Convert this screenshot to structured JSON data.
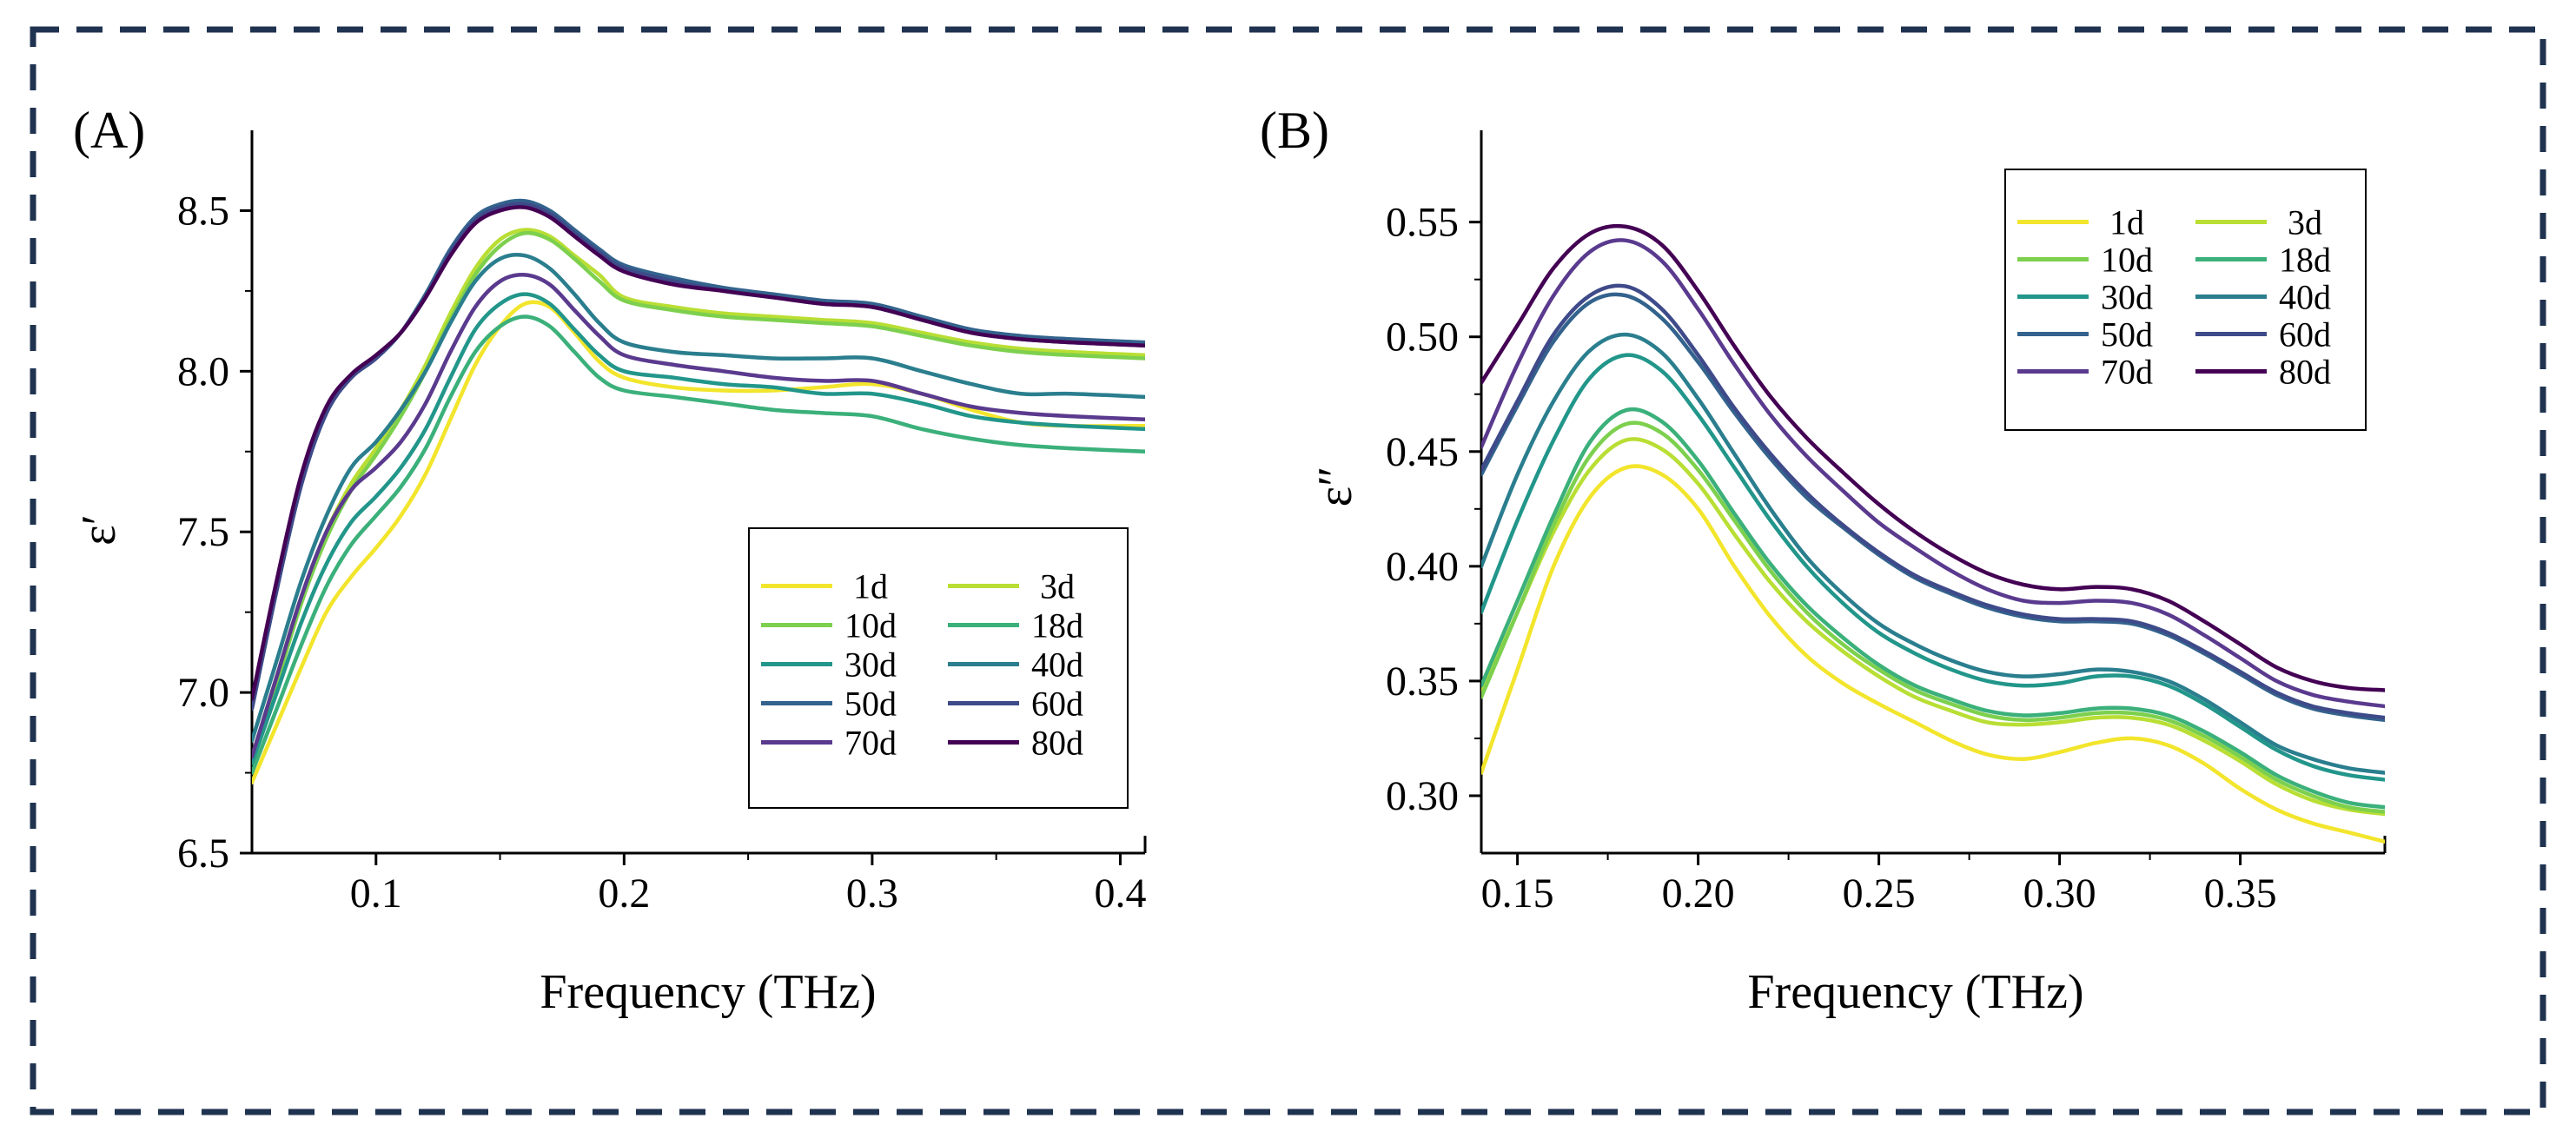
{
  "frame": {
    "border_color": "#1f3350",
    "border_style": "dashed"
  },
  "chart_data": [
    {
      "type": "line",
      "panel_label": "(A)",
      "title": "",
      "xlabel": "Frequency (THz)",
      "ylabel": "ε′",
      "xlim": [
        0.05,
        0.41
      ],
      "ylim": [
        6.5,
        8.75
      ],
      "x_ticks": [
        0.1,
        0.2,
        0.3,
        0.4
      ],
      "x_tick_labels": [
        "0.1",
        "0.2",
        "0.3",
        "0.4"
      ],
      "y_ticks": [
        6.5,
        7.0,
        7.5,
        8.0,
        8.5
      ],
      "y_tick_labels": [
        "6.5",
        "7.0",
        "7.5",
        "8.0",
        "8.5"
      ],
      "grid": false,
      "legend": {
        "position": "bottom-right",
        "columns": 2
      },
      "x": [
        0.05,
        0.06,
        0.07,
        0.08,
        0.09,
        0.1,
        0.11,
        0.12,
        0.13,
        0.14,
        0.15,
        0.16,
        0.17,
        0.18,
        0.19,
        0.2,
        0.22,
        0.24,
        0.26,
        0.28,
        0.3,
        0.32,
        0.34,
        0.36,
        0.38,
        0.41
      ],
      "series": [
        {
          "name": "1d",
          "color": "#f2e52c",
          "values": [
            6.72,
            6.9,
            7.08,
            7.25,
            7.36,
            7.45,
            7.55,
            7.68,
            7.85,
            8.02,
            8.14,
            8.21,
            8.2,
            8.12,
            8.03,
            7.98,
            7.95,
            7.94,
            7.94,
            7.95,
            7.96,
            7.93,
            7.88,
            7.84,
            7.83,
            7.83
          ]
        },
        {
          "name": "3d",
          "color": "#b9de34",
          "values": [
            6.8,
            7.05,
            7.3,
            7.5,
            7.65,
            7.76,
            7.88,
            8.02,
            8.18,
            8.32,
            8.41,
            8.44,
            8.42,
            8.36,
            8.3,
            8.23,
            8.2,
            8.18,
            8.17,
            8.16,
            8.15,
            8.12,
            8.09,
            8.07,
            8.06,
            8.05
          ]
        },
        {
          "name": "10d",
          "color": "#7dd04e",
          "values": [
            6.78,
            7.03,
            7.28,
            7.48,
            7.63,
            7.74,
            7.86,
            8.0,
            8.16,
            8.3,
            8.39,
            8.43,
            8.41,
            8.35,
            8.28,
            8.22,
            8.19,
            8.17,
            8.16,
            8.15,
            8.14,
            8.11,
            8.08,
            8.06,
            8.05,
            8.04
          ]
        },
        {
          "name": "18d",
          "color": "#3bb07a",
          "values": [
            6.75,
            6.95,
            7.15,
            7.33,
            7.46,
            7.55,
            7.64,
            7.76,
            7.92,
            8.06,
            8.14,
            8.17,
            8.14,
            8.06,
            7.98,
            7.94,
            7.92,
            7.9,
            7.88,
            7.87,
            7.86,
            7.82,
            7.79,
            7.77,
            7.76,
            7.75
          ]
        },
        {
          "name": "30d",
          "color": "#22968a",
          "values": [
            6.78,
            7.0,
            7.22,
            7.4,
            7.53,
            7.61,
            7.7,
            7.82,
            7.98,
            8.13,
            8.21,
            8.24,
            8.21,
            8.13,
            8.05,
            8.0,
            7.98,
            7.96,
            7.95,
            7.93,
            7.93,
            7.9,
            7.86,
            7.84,
            7.83,
            7.82
          ]
        },
        {
          "name": "40d",
          "color": "#2a7e8e",
          "values": [
            6.85,
            7.1,
            7.35,
            7.55,
            7.7,
            7.78,
            7.88,
            8.0,
            8.15,
            8.28,
            8.35,
            8.36,
            8.32,
            8.24,
            8.15,
            8.09,
            8.06,
            8.05,
            8.04,
            8.04,
            8.04,
            8.0,
            7.96,
            7.93,
            7.93,
            7.92
          ]
        },
        {
          "name": "50d",
          "color": "#33638d",
          "values": [
            6.95,
            7.32,
            7.65,
            7.87,
            7.98,
            8.04,
            8.12,
            8.24,
            8.38,
            8.48,
            8.52,
            8.53,
            8.5,
            8.44,
            8.38,
            8.33,
            8.29,
            8.26,
            8.24,
            8.22,
            8.21,
            8.17,
            8.13,
            8.11,
            8.1,
            8.09
          ]
        },
        {
          "name": "60d",
          "color": "#3e4a89",
          "values": [
            6.95,
            7.32,
            7.65,
            7.87,
            7.98,
            8.04,
            8.12,
            8.23,
            8.37,
            8.47,
            8.51,
            8.52,
            8.49,
            8.43,
            8.37,
            8.32,
            8.28,
            8.25,
            8.23,
            8.21,
            8.2,
            8.16,
            8.12,
            8.1,
            8.09,
            8.08
          ]
        },
        {
          "name": "70d",
          "color": "#5a3a8e",
          "values": [
            6.8,
            7.05,
            7.3,
            7.5,
            7.63,
            7.7,
            7.78,
            7.9,
            8.06,
            8.2,
            8.28,
            8.3,
            8.27,
            8.19,
            8.11,
            8.05,
            8.02,
            8.0,
            7.98,
            7.97,
            7.97,
            7.93,
            7.89,
            7.87,
            7.86,
            7.85
          ]
        },
        {
          "name": "80d",
          "color": "#440154",
          "values": [
            6.98,
            7.35,
            7.68,
            7.89,
            7.99,
            8.05,
            8.12,
            8.23,
            8.36,
            8.46,
            8.5,
            8.51,
            8.48,
            8.42,
            8.36,
            8.31,
            8.27,
            8.25,
            8.23,
            8.21,
            8.2,
            8.16,
            8.12,
            8.1,
            8.09,
            8.08
          ]
        }
      ]
    },
    {
      "type": "line",
      "panel_label": "(B)",
      "title": "",
      "xlabel": "Frequency (THz)",
      "ylabel": "ε″",
      "xlim": [
        0.14,
        0.39
      ],
      "ylim": [
        0.275,
        0.59
      ],
      "x_ticks": [
        0.15,
        0.2,
        0.25,
        0.3,
        0.35
      ],
      "x_tick_labels": [
        "0.15",
        "0.20",
        "0.25",
        "0.30",
        "0.35"
      ],
      "y_ticks": [
        0.3,
        0.35,
        0.4,
        0.45,
        0.5,
        0.55
      ],
      "y_tick_labels": [
        "0.30",
        "0.35",
        "0.40",
        "0.45",
        "0.50",
        "0.55"
      ],
      "grid": false,
      "legend": {
        "position": "top-right",
        "columns": 2
      },
      "x": [
        0.14,
        0.15,
        0.16,
        0.17,
        0.18,
        0.19,
        0.2,
        0.21,
        0.22,
        0.23,
        0.24,
        0.25,
        0.26,
        0.27,
        0.28,
        0.29,
        0.3,
        0.31,
        0.32,
        0.33,
        0.34,
        0.35,
        0.36,
        0.37,
        0.38,
        0.39
      ],
      "series": [
        {
          "name": "1d",
          "color": "#f2e52c",
          "values": [
            0.31,
            0.355,
            0.4,
            0.43,
            0.443,
            0.44,
            0.425,
            0.4,
            0.378,
            0.361,
            0.349,
            0.34,
            0.332,
            0.324,
            0.318,
            0.316,
            0.319,
            0.323,
            0.325,
            0.322,
            0.314,
            0.303,
            0.294,
            0.288,
            0.284,
            0.28
          ]
        },
        {
          "name": "3d",
          "color": "#b9de34",
          "values": [
            0.345,
            0.38,
            0.415,
            0.442,
            0.455,
            0.451,
            0.436,
            0.414,
            0.393,
            0.376,
            0.363,
            0.352,
            0.343,
            0.337,
            0.332,
            0.331,
            0.332,
            0.334,
            0.334,
            0.331,
            0.324,
            0.315,
            0.305,
            0.298,
            0.294,
            0.292
          ]
        },
        {
          "name": "10d",
          "color": "#7dd04e",
          "values": [
            0.343,
            0.38,
            0.418,
            0.448,
            0.462,
            0.458,
            0.442,
            0.42,
            0.398,
            0.38,
            0.366,
            0.355,
            0.346,
            0.34,
            0.335,
            0.333,
            0.334,
            0.336,
            0.336,
            0.333,
            0.326,
            0.317,
            0.307,
            0.3,
            0.295,
            0.293
          ]
        },
        {
          "name": "18d",
          "color": "#3bb07a",
          "values": [
            0.348,
            0.385,
            0.422,
            0.454,
            0.468,
            0.463,
            0.446,
            0.423,
            0.401,
            0.383,
            0.369,
            0.357,
            0.348,
            0.342,
            0.337,
            0.335,
            0.336,
            0.338,
            0.338,
            0.335,
            0.328,
            0.319,
            0.309,
            0.302,
            0.297,
            0.295
          ]
        },
        {
          "name": "30d",
          "color": "#22968a",
          "values": [
            0.38,
            0.42,
            0.455,
            0.482,
            0.492,
            0.485,
            0.466,
            0.443,
            0.42,
            0.4,
            0.384,
            0.371,
            0.362,
            0.355,
            0.35,
            0.348,
            0.349,
            0.352,
            0.352,
            0.348,
            0.34,
            0.33,
            0.32,
            0.313,
            0.309,
            0.307
          ]
        },
        {
          "name": "40d",
          "color": "#2a7e8e",
          "values": [
            0.4,
            0.44,
            0.472,
            0.494,
            0.501,
            0.493,
            0.473,
            0.449,
            0.425,
            0.404,
            0.388,
            0.375,
            0.366,
            0.359,
            0.354,
            0.352,
            0.353,
            0.355,
            0.354,
            0.35,
            0.342,
            0.332,
            0.322,
            0.316,
            0.312,
            0.31
          ]
        },
        {
          "name": "50d",
          "color": "#33638d",
          "values": [
            0.44,
            0.47,
            0.498,
            0.515,
            0.518,
            0.508,
            0.489,
            0.467,
            0.447,
            0.43,
            0.417,
            0.405,
            0.395,
            0.388,
            0.382,
            0.378,
            0.376,
            0.376,
            0.375,
            0.37,
            0.362,
            0.353,
            0.344,
            0.338,
            0.335,
            0.333
          ]
        },
        {
          "name": "60d",
          "color": "#3e4a89",
          "values": [
            0.442,
            0.472,
            0.501,
            0.518,
            0.522,
            0.512,
            0.492,
            0.469,
            0.449,
            0.432,
            0.418,
            0.406,
            0.396,
            0.389,
            0.383,
            0.379,
            0.377,
            0.377,
            0.376,
            0.371,
            0.363,
            0.354,
            0.345,
            0.339,
            0.336,
            0.334
          ]
        },
        {
          "name": "70d",
          "color": "#5a3a8e",
          "values": [
            0.452,
            0.488,
            0.518,
            0.537,
            0.542,
            0.533,
            0.512,
            0.488,
            0.466,
            0.448,
            0.433,
            0.419,
            0.408,
            0.398,
            0.39,
            0.385,
            0.384,
            0.385,
            0.384,
            0.379,
            0.37,
            0.36,
            0.35,
            0.344,
            0.341,
            0.339
          ]
        },
        {
          "name": "80d",
          "color": "#440154",
          "values": [
            0.48,
            0.505,
            0.53,
            0.545,
            0.548,
            0.54,
            0.52,
            0.496,
            0.474,
            0.456,
            0.441,
            0.427,
            0.415,
            0.405,
            0.397,
            0.392,
            0.39,
            0.391,
            0.39,
            0.385,
            0.376,
            0.366,
            0.356,
            0.35,
            0.347,
            0.346
          ]
        }
      ]
    }
  ]
}
